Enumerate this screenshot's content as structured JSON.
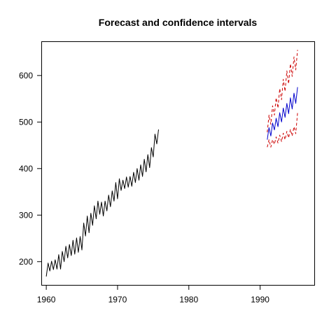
{
  "chart_data": {
    "type": "line",
    "title": "Forecast and confidence intervals",
    "xlabel": "",
    "ylabel": "",
    "xlim": [
      1959.4,
      1997.6
    ],
    "ylim": [
      150,
      672
    ],
    "x_ticks": [
      1960,
      1970,
      1980,
      1990
    ],
    "y_ticks": [
      200,
      300,
      400,
      500,
      600
    ],
    "grid": false,
    "legend": "none",
    "series": [
      {
        "role": "observed",
        "color": "#000000",
        "dash": "solid",
        "x_start": 1960,
        "x_step": 0.25,
        "values": [
          168,
          197,
          180,
          201,
          183,
          204,
          184,
          215,
          184,
          222,
          200,
          233,
          208,
          237,
          213,
          246,
          216,
          251,
          220,
          254,
          225,
          283,
          255,
          298,
          262,
          304,
          278,
          320,
          292,
          330,
          302,
          328,
          298,
          330,
          309,
          343,
          318,
          352,
          330,
          370,
          335,
          378,
          353,
          375,
          357,
          382,
          360,
          383,
          362,
          392,
          370,
          400,
          375,
          408,
          383,
          420,
          393,
          430,
          402,
          445,
          425,
          474,
          453,
          484
        ]
      },
      {
        "role": "forecast",
        "color": "#0000cc",
        "dash": "solid",
        "x_start": 1991,
        "x_step": 0.25,
        "values": [
          462,
          488,
          470,
          498,
          483,
          508,
          490,
          520,
          500,
          530,
          510,
          540,
          518,
          552,
          528,
          562,
          540,
          575
        ]
      },
      {
        "role": "upper-bound",
        "color": "#cc0000",
        "dash": "dashed",
        "x_start": 1991,
        "x_step": 0.25,
        "values": [
          478,
          515,
          495,
          535,
          515,
          552,
          530,
          572,
          548,
          592,
          566,
          610,
          582,
          625,
          598,
          640,
          612,
          655
        ]
      },
      {
        "role": "lower-bound",
        "color": "#cc0000",
        "dash": "dashed",
        "x_start": 1991,
        "x_step": 0.25,
        "values": [
          446,
          462,
          446,
          462,
          452,
          468,
          455,
          472,
          458,
          476,
          462,
          480,
          466,
          484,
          470,
          490,
          475,
          520
        ]
      }
    ]
  }
}
